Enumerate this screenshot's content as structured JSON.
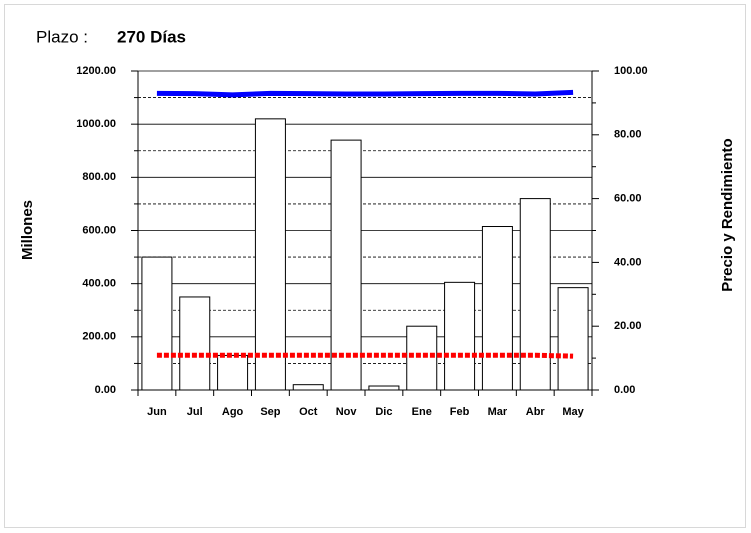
{
  "chart_data": {
    "type": "bar_line",
    "plazo_label": "Plazo :",
    "plazo_value": "270 Días",
    "ylabel": "Millones",
    "y2label": "Precio y Rendimiento",
    "categories": [
      "Jun",
      "Jul",
      "Ago",
      "Sep",
      "Oct",
      "Nov",
      "Dic",
      "Ene",
      "Feb",
      "Mar",
      "Abr",
      "May"
    ],
    "series": [
      {
        "type": "bar",
        "color": "#ffffff",
        "values": [
          500,
          350,
          130,
          1020,
          20,
          940,
          15,
          240,
          405,
          615,
          720,
          385
        ]
      },
      {
        "type": "line",
        "axis": "y2",
        "color": "#0000ff",
        "line_style": "solid",
        "values": [
          93,
          92.9,
          92.5,
          93,
          92.9,
          92.8,
          92.8,
          92.9,
          93,
          93,
          92.8,
          93.3
        ]
      },
      {
        "type": "line",
        "axis": "y2",
        "color": "#ff0000",
        "line_style": "dotted",
        "values": [
          10.9,
          10.9,
          10.9,
          10.9,
          10.9,
          10.9,
          10.9,
          10.9,
          10.9,
          10.9,
          10.9,
          10.6
        ]
      }
    ],
    "ylim": [
      0,
      1200
    ],
    "yticks": [
      {
        "value": 0,
        "label": "0.00"
      },
      {
        "value": 200,
        "label": "200.00"
      },
      {
        "value": 400,
        "label": "400.00"
      },
      {
        "value": 600,
        "label": "600.00"
      },
      {
        "value": 800,
        "label": "800.00"
      },
      {
        "value": 1000,
        "label": "1000.00"
      },
      {
        "value": 1200,
        "label": "1200.00"
      }
    ],
    "y_minor_ticks": [
      100,
      300,
      500,
      700,
      900,
      1100
    ],
    "y2lim": [
      0,
      100
    ],
    "y2ticks": [
      {
        "value": 0,
        "label": "0.00"
      },
      {
        "value": 20,
        "label": "20.00"
      },
      {
        "value": 40,
        "label": "40.00"
      },
      {
        "value": 60,
        "label": "60.00"
      },
      {
        "value": 80,
        "label": "80.00"
      },
      {
        "value": 100,
        "label": "100.00"
      }
    ],
    "grid": true
  }
}
